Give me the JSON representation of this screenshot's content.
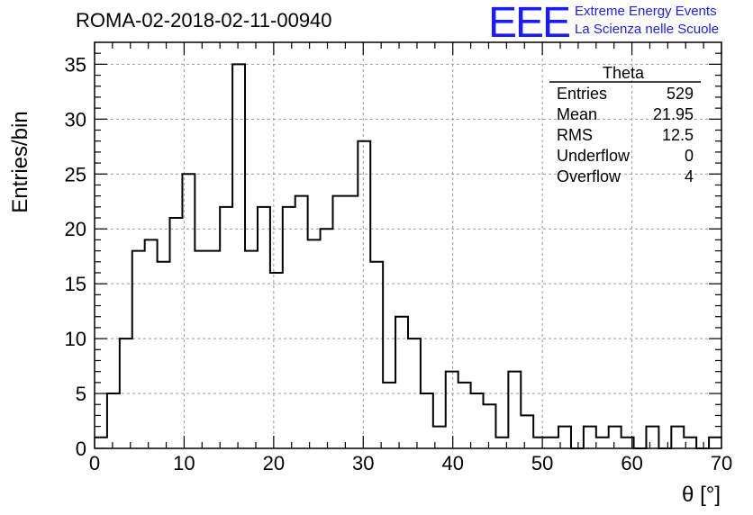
{
  "title": "ROMA-02-2018-02-11-00940",
  "logo": {
    "mark": "EEE",
    "line1": "Extreme Energy Events",
    "line2": "La Scienza nelle Scuole",
    "color": "#1a1aff"
  },
  "stats_box": {
    "name": "Theta",
    "rows": [
      {
        "label": "Entries",
        "value": "529"
      },
      {
        "label": "Mean",
        "value": "21.95"
      },
      {
        "label": "RMS",
        "value": "12.5"
      },
      {
        "label": "Underflow",
        "value": "0"
      },
      {
        "label": "Overflow",
        "value": "4"
      }
    ]
  },
  "chart_data": {
    "type": "bar",
    "histogram": true,
    "xlabel": "θ [°]",
    "ylabel": "Entries/bin",
    "xlim": [
      0,
      70
    ],
    "ylim": [
      0,
      37
    ],
    "bin_width": 1.4,
    "x_ticks": [
      0,
      10,
      20,
      30,
      40,
      50,
      60,
      70
    ],
    "y_ticks": [
      0,
      5,
      10,
      15,
      20,
      25,
      30,
      35
    ],
    "grid": true,
    "values": [
      1,
      5,
      10,
      18,
      19,
      17,
      21,
      25,
      18,
      18,
      22,
      35,
      18,
      22,
      16,
      22,
      23,
      19,
      20,
      23,
      23,
      28,
      17,
      6,
      12,
      10,
      5,
      2,
      7,
      6,
      5,
      4,
      1,
      7,
      3,
      1,
      1,
      2,
      0,
      2,
      1,
      2,
      1,
      0,
      2,
      0,
      2,
      1,
      0,
      1
    ]
  }
}
